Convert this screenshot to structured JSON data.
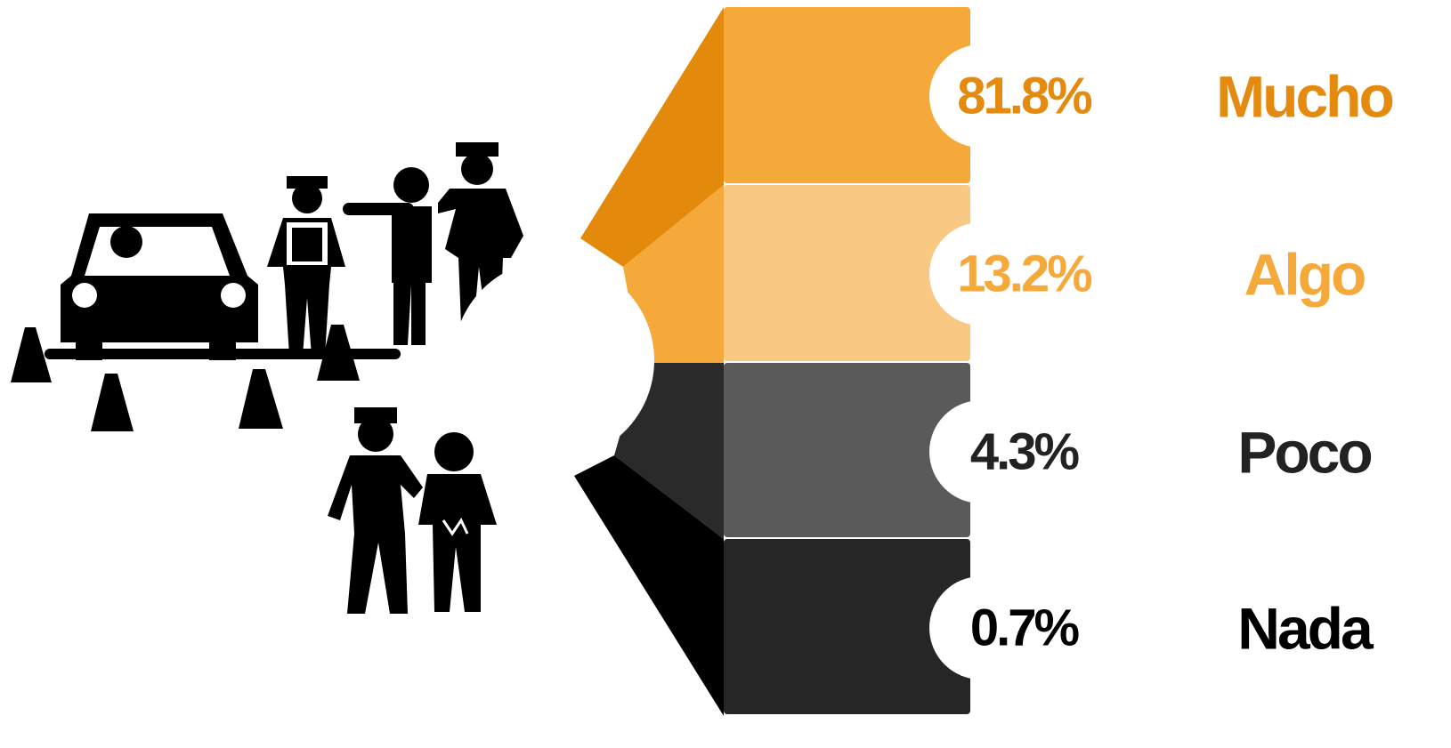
{
  "items": [
    {
      "value": "81.8%",
      "label": "Mucho",
      "color": "#f5a93a",
      "edge": "#e38a0c",
      "text": "#e48a0f"
    },
    {
      "value": "13.2%",
      "label": "Algo",
      "color": "#f9c983",
      "edge": "#f5a93a",
      "text": "#f5a93a"
    },
    {
      "value": "4.3%",
      "label": "Poco",
      "color": "#5a5a5a",
      "edge": "#2a2a2a",
      "text": "#222222"
    },
    {
      "value": "0.7%",
      "label": "Nada",
      "color": "#262626",
      "edge": "#000000",
      "text": "#000000"
    }
  ]
}
